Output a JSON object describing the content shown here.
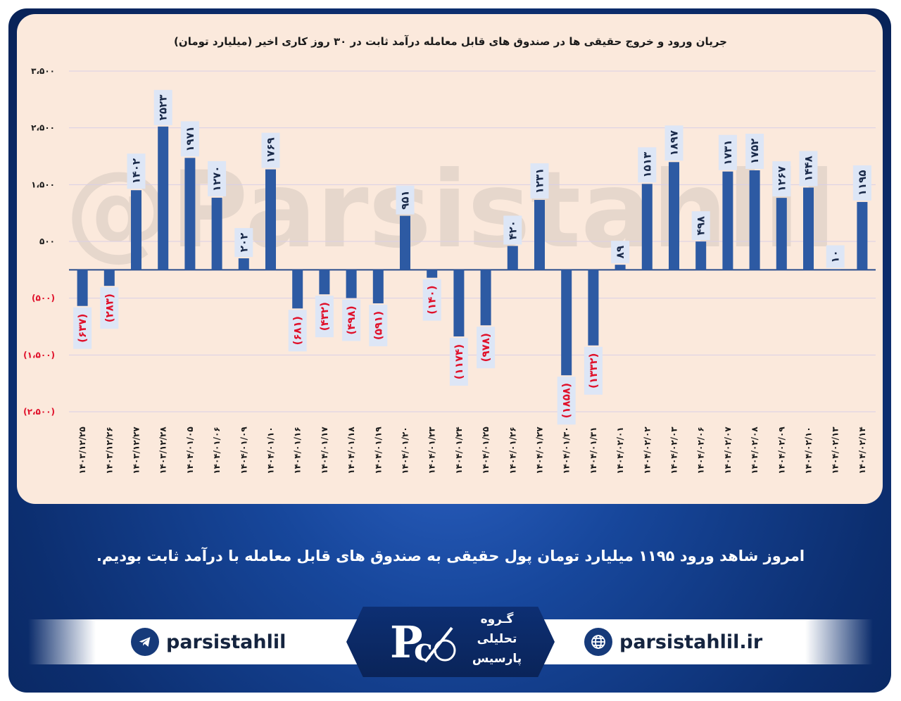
{
  "footer": {
    "telegram_handle": "parsistahlil",
    "website": "parsistahlil.ir",
    "logo_line1": "گـروه",
    "logo_line2": "تحلیلی",
    "logo_line3": "پارسیس"
  },
  "headline": "امروز شاهد ورود ۱۱۹۵ میلیارد تومان پول حقیقی به صندوق های قابل معامله با درآمد ثابت بودیم.",
  "watermark": "@Parsistahlil",
  "colors": {
    "bar": "#2d5aa3",
    "negative_label": "#e0102a",
    "panel": "#fbe9dc",
    "label_bg": "#dde6f6",
    "gridline": "#d9cfe6"
  },
  "chart_data": {
    "type": "bar",
    "title": "جریان ورود و خروج حقیقی ها در صندوق های قابل معامله درآمد ثابت در ۳۰ روز کاری اخیر (میلیارد تومان)",
    "xlabel": "",
    "ylabel": "",
    "ylim": [
      -2500,
      3500
    ],
    "grid": true,
    "y_ticks": [
      3500,
      2500,
      1500,
      500,
      -500,
      -1500,
      -2500
    ],
    "y_tick_labels": [
      "۳،۵۰۰",
      "۲،۵۰۰",
      "۱،۵۰۰",
      "۵۰۰",
      "(۵۰۰)",
      "(۱،۵۰۰)",
      "(۲،۵۰۰)"
    ],
    "categories": [
      "۱۴۰۳/۱۲/۲۵",
      "۱۴۰۳/۱۲/۲۶",
      "۱۴۰۳/۱۲/۲۷",
      "۱۴۰۳/۱۲/۲۸",
      "۱۴۰۴/۰۱/۰۵",
      "۱۴۰۴/۰۱/۰۶",
      "۱۴۰۴/۰۱/۰۹",
      "۱۴۰۴/۰۱/۱۰",
      "۱۴۰۴/۰۱/۱۶",
      "۱۴۰۴/۰۱/۱۷",
      "۱۴۰۴/۰۱/۱۸",
      "۱۴۰۴/۰۱/۱۹",
      "۱۴۰۴/۰۱/۲۰",
      "۱۴۰۴/۰۱/۲۳",
      "۱۴۰۴/۰۱/۲۴",
      "۱۴۰۴/۰۱/۲۵",
      "۱۴۰۴/۰۱/۲۶",
      "۱۴۰۴/۰۱/۲۷",
      "۱۴۰۴/۰۱/۳۰",
      "۱۴۰۴/۰۱/۳۱",
      "۱۴۰۴/۰۲/۰۱",
      "۱۴۰۴/۰۲/۰۲",
      "۱۴۰۴/۰۲/۰۳",
      "۱۴۰۴/۰۲/۰۶",
      "۱۴۰۴/۰۲/۰۷",
      "۱۴۰۴/۰۲/۰۸",
      "۱۴۰۴/۰۲/۰۹",
      "۱۴۰۴/۰۲/۱۰",
      "۱۴۰۴/۰۲/۱۳",
      "۱۴۰۴/۰۲/۱۴"
    ],
    "values": [
      -637,
      -283,
      1402,
      2523,
      1971,
      1270,
      202,
      1769,
      -681,
      -432,
      -498,
      -591,
      951,
      -140,
      -1174,
      -978,
      420,
      1231,
      -1858,
      -1332,
      89,
      1513,
      1897,
      498,
      1731,
      1752,
      1267,
      1448,
      10,
      1195
    ],
    "data_labels": [
      "(۶۳۷)",
      "(۲۸۳)",
      "۱۴۰۲",
      "۲۵۲۳",
      "۱۹۷۱",
      "۱۲۷۰",
      "۲۰۲",
      "۱۷۶۹",
      "(۶۸۱)",
      "(۴۳۲)",
      "(۴۹۸)",
      "(۵۹۱)",
      "۹۵۱",
      "(۱۴۰)",
      "(۱۱۷۴)",
      "(۹۷۸)",
      "۴۲۰",
      "۱۲۳۱",
      "(۱۸۵۸)",
      "(۱۳۳۲)",
      "۸۹",
      "۱۵۱۳",
      "۱۸۹۷",
      "۴۹۸",
      "۱۷۳۱",
      "۱۷۵۲",
      "۱۲۶۷",
      "۱۴۴۸",
      "۱۰",
      "۱۱۹۵"
    ]
  }
}
